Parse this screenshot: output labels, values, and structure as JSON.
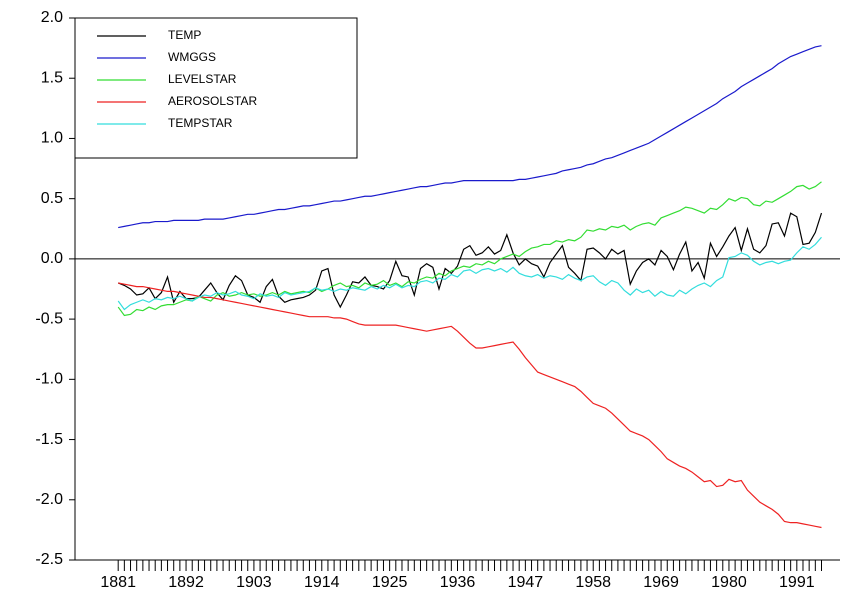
{
  "chart_data": {
    "type": "line",
    "x": [
      1881,
      1882,
      1883,
      1884,
      1885,
      1886,
      1887,
      1888,
      1889,
      1890,
      1891,
      1892,
      1893,
      1894,
      1895,
      1896,
      1897,
      1898,
      1899,
      1900,
      1901,
      1902,
      1903,
      1904,
      1905,
      1906,
      1907,
      1908,
      1909,
      1910,
      1911,
      1912,
      1913,
      1914,
      1915,
      1916,
      1917,
      1918,
      1919,
      1920,
      1921,
      1922,
      1923,
      1924,
      1925,
      1926,
      1927,
      1928,
      1929,
      1930,
      1931,
      1932,
      1933,
      1934,
      1935,
      1936,
      1937,
      1938,
      1939,
      1940,
      1941,
      1942,
      1943,
      1944,
      1945,
      1946,
      1947,
      1948,
      1949,
      1950,
      1951,
      1952,
      1953,
      1954,
      1955,
      1956,
      1957,
      1958,
      1959,
      1960,
      1961,
      1962,
      1963,
      1964,
      1965,
      1966,
      1967,
      1968,
      1969,
      1970,
      1971,
      1972,
      1973,
      1974,
      1975,
      1976,
      1977,
      1978,
      1979,
      1980,
      1981,
      1982,
      1983,
      1984,
      1985,
      1986,
      1987,
      1988,
      1989,
      1990,
      1991,
      1992,
      1993,
      1994,
      1995
    ],
    "xlim": [
      1874,
      1998
    ],
    "xticks": [
      1881,
      1892,
      1903,
      1914,
      1925,
      1936,
      1947,
      1958,
      1969,
      1980,
      1991
    ],
    "ylim": [
      -2.5,
      2.0
    ],
    "yticks": [
      -2.5,
      {
        "value": -2.0,
        "label": "-2.0"
      },
      -1.5,
      {
        "value": -1.0,
        "label": "-1.0"
      },
      -0.5,
      {
        "value": 0,
        "label": "0.0"
      },
      0.5,
      {
        "value": 1.0,
        "label": "1.0"
      },
      1.5,
      {
        "value": 2.0,
        "label": "2.0"
      }
    ],
    "legend": "upper left",
    "series": [
      {
        "name": "TEMP",
        "color": "#000000",
        "values": [
          -0.2,
          -0.22,
          -0.25,
          -0.3,
          -0.29,
          -0.24,
          -0.33,
          -0.28,
          -0.15,
          -0.36,
          -0.27,
          -0.33,
          -0.33,
          -0.32,
          -0.26,
          -0.2,
          -0.28,
          -0.34,
          -0.22,
          -0.14,
          -0.18,
          -0.3,
          -0.32,
          -0.36,
          -0.23,
          -0.17,
          -0.31,
          -0.36,
          -0.34,
          -0.33,
          -0.32,
          -0.3,
          -0.26,
          -0.1,
          -0.08,
          -0.3,
          -0.4,
          -0.3,
          -0.19,
          -0.2,
          -0.15,
          -0.22,
          -0.23,
          -0.25,
          -0.18,
          -0.02,
          -0.14,
          -0.15,
          -0.3,
          -0.08,
          -0.04,
          -0.07,
          -0.25,
          -0.08,
          -0.12,
          -0.06,
          0.08,
          0.11,
          0.03,
          0.05,
          0.1,
          0.04,
          0.07,
          0.2,
          0.05,
          -0.05,
          0.0,
          -0.04,
          -0.06,
          -0.15,
          -0.03,
          0.04,
          0.11,
          -0.07,
          -0.12,
          -0.18,
          0.08,
          0.09,
          0.05,
          0.0,
          0.08,
          0.04,
          0.07,
          -0.21,
          -0.1,
          -0.03,
          0.0,
          -0.05,
          0.07,
          0.02,
          -0.09,
          0.04,
          0.14,
          -0.1,
          -0.03,
          -0.16,
          0.13,
          0.02,
          0.1,
          0.19,
          0.26,
          0.07,
          0.25,
          0.08,
          0.05,
          0.11,
          0.29,
          0.3,
          0.19,
          0.38,
          0.35,
          0.12,
          0.13,
          0.22,
          0.38
        ]
      },
      {
        "name": "WMGGS",
        "color": "#1a1acc",
        "values": [
          0.26,
          0.27,
          0.28,
          0.29,
          0.3,
          0.3,
          0.31,
          0.31,
          0.31,
          0.32,
          0.32,
          0.32,
          0.32,
          0.32,
          0.33,
          0.33,
          0.33,
          0.33,
          0.34,
          0.35,
          0.36,
          0.37,
          0.37,
          0.38,
          0.39,
          0.4,
          0.41,
          0.41,
          0.42,
          0.43,
          0.44,
          0.44,
          0.45,
          0.46,
          0.47,
          0.48,
          0.48,
          0.49,
          0.5,
          0.51,
          0.52,
          0.52,
          0.53,
          0.54,
          0.55,
          0.56,
          0.57,
          0.58,
          0.59,
          0.6,
          0.6,
          0.61,
          0.62,
          0.63,
          0.63,
          0.64,
          0.65,
          0.65,
          0.65,
          0.65,
          0.65,
          0.65,
          0.65,
          0.65,
          0.65,
          0.66,
          0.66,
          0.67,
          0.68,
          0.69,
          0.7,
          0.71,
          0.73,
          0.74,
          0.75,
          0.76,
          0.78,
          0.79,
          0.81,
          0.83,
          0.84,
          0.86,
          0.88,
          0.9,
          0.92,
          0.94,
          0.96,
          0.99,
          1.02,
          1.05,
          1.08,
          1.11,
          1.14,
          1.17,
          1.2,
          1.23,
          1.26,
          1.29,
          1.33,
          1.36,
          1.39,
          1.43,
          1.46,
          1.49,
          1.52,
          1.55,
          1.58,
          1.62,
          1.65,
          1.68,
          1.7,
          1.72,
          1.74,
          1.76,
          1.77
        ]
      },
      {
        "name": "LEVELSTAR",
        "color": "#33dd33",
        "values": [
          -0.4,
          -0.47,
          -0.46,
          -0.42,
          -0.43,
          -0.4,
          -0.42,
          -0.39,
          -0.38,
          -0.38,
          -0.36,
          -0.34,
          -0.35,
          -0.31,
          -0.33,
          -0.35,
          -0.3,
          -0.28,
          -0.31,
          -0.3,
          -0.28,
          -0.3,
          -0.29,
          -0.31,
          -0.3,
          -0.28,
          -0.3,
          -0.27,
          -0.29,
          -0.28,
          -0.27,
          -0.28,
          -0.24,
          -0.27,
          -0.25,
          -0.22,
          -0.2,
          -0.23,
          -0.22,
          -0.24,
          -0.2,
          -0.22,
          -0.21,
          -0.18,
          -0.22,
          -0.2,
          -0.23,
          -0.19,
          -0.2,
          -0.17,
          -0.15,
          -0.16,
          -0.12,
          -0.14,
          -0.1,
          -0.08,
          -0.06,
          -0.07,
          -0.04,
          -0.05,
          -0.02,
          -0.04,
          0.0,
          0.02,
          0.04,
          0.02,
          0.06,
          0.09,
          0.1,
          0.12,
          0.12,
          0.15,
          0.14,
          0.16,
          0.15,
          0.18,
          0.24,
          0.23,
          0.25,
          0.24,
          0.27,
          0.26,
          0.28,
          0.24,
          0.27,
          0.29,
          0.3,
          0.28,
          0.34,
          0.36,
          0.38,
          0.4,
          0.43,
          0.42,
          0.4,
          0.38,
          0.42,
          0.41,
          0.45,
          0.5,
          0.48,
          0.51,
          0.5,
          0.45,
          0.44,
          0.48,
          0.47,
          0.5,
          0.53,
          0.56,
          0.6,
          0.61,
          0.58,
          0.6,
          0.64
        ]
      },
      {
        "name": "AEROSOLSTAR",
        "color": "#ee2222",
        "values": [
          -0.2,
          -0.21,
          -0.22,
          -0.23,
          -0.23,
          -0.24,
          -0.25,
          -0.26,
          -0.27,
          -0.27,
          -0.28,
          -0.29,
          -0.3,
          -0.31,
          -0.32,
          -0.32,
          -0.33,
          -0.34,
          -0.35,
          -0.36,
          -0.37,
          -0.38,
          -0.39,
          -0.4,
          -0.41,
          -0.42,
          -0.43,
          -0.44,
          -0.45,
          -0.46,
          -0.47,
          -0.48,
          -0.48,
          -0.48,
          -0.48,
          -0.49,
          -0.49,
          -0.5,
          -0.52,
          -0.54,
          -0.55,
          -0.55,
          -0.55,
          -0.55,
          -0.55,
          -0.55,
          -0.56,
          -0.57,
          -0.58,
          -0.59,
          -0.6,
          -0.59,
          -0.58,
          -0.57,
          -0.56,
          -0.6,
          -0.65,
          -0.7,
          -0.74,
          -0.74,
          -0.73,
          -0.72,
          -0.71,
          -0.7,
          -0.69,
          -0.75,
          -0.82,
          -0.88,
          -0.94,
          -0.96,
          -0.98,
          -1.0,
          -1.02,
          -1.04,
          -1.06,
          -1.1,
          -1.15,
          -1.2,
          -1.22,
          -1.24,
          -1.28,
          -1.33,
          -1.38,
          -1.43,
          -1.45,
          -1.47,
          -1.5,
          -1.55,
          -1.6,
          -1.66,
          -1.69,
          -1.72,
          -1.74,
          -1.77,
          -1.81,
          -1.85,
          -1.84,
          -1.89,
          -1.88,
          -1.83,
          -1.85,
          -1.84,
          -1.92,
          -1.97,
          -2.02,
          -2.05,
          -2.08,
          -2.12,
          -2.18,
          -2.19,
          -2.19,
          -2.2,
          -2.21,
          -2.22,
          -2.23
        ]
      },
      {
        "name": "TEMPSTAR",
        "color": "#33dddd",
        "values": [
          -0.35,
          -0.42,
          -0.38,
          -0.36,
          -0.34,
          -0.36,
          -0.33,
          -0.34,
          -0.32,
          -0.33,
          -0.31,
          -0.33,
          -0.35,
          -0.32,
          -0.3,
          -0.31,
          -0.28,
          -0.3,
          -0.29,
          -0.27,
          -0.3,
          -0.31,
          -0.33,
          -0.29,
          -0.31,
          -0.3,
          -0.32,
          -0.28,
          -0.3,
          -0.29,
          -0.28,
          -0.27,
          -0.24,
          -0.26,
          -0.25,
          -0.27,
          -0.25,
          -0.26,
          -0.24,
          -0.25,
          -0.26,
          -0.23,
          -0.25,
          -0.22,
          -0.24,
          -0.21,
          -0.24,
          -0.22,
          -0.23,
          -0.19,
          -0.18,
          -0.2,
          -0.16,
          -0.17,
          -0.13,
          -0.15,
          -0.1,
          -0.09,
          -0.12,
          -0.09,
          -0.08,
          -0.1,
          -0.08,
          -0.11,
          -0.07,
          -0.12,
          -0.14,
          -0.15,
          -0.13,
          -0.16,
          -0.14,
          -0.15,
          -0.17,
          -0.13,
          -0.16,
          -0.18,
          -0.15,
          -0.14,
          -0.19,
          -0.22,
          -0.18,
          -0.2,
          -0.26,
          -0.3,
          -0.25,
          -0.28,
          -0.26,
          -0.31,
          -0.27,
          -0.3,
          -0.31,
          -0.26,
          -0.29,
          -0.25,
          -0.22,
          -0.2,
          -0.23,
          -0.18,
          -0.15,
          0.01,
          0.02,
          0.05,
          0.03,
          -0.02,
          -0.05,
          -0.03,
          -0.02,
          -0.04,
          -0.02,
          -0.01,
          0.05,
          0.1,
          0.08,
          0.12,
          0.18
        ]
      }
    ]
  }
}
